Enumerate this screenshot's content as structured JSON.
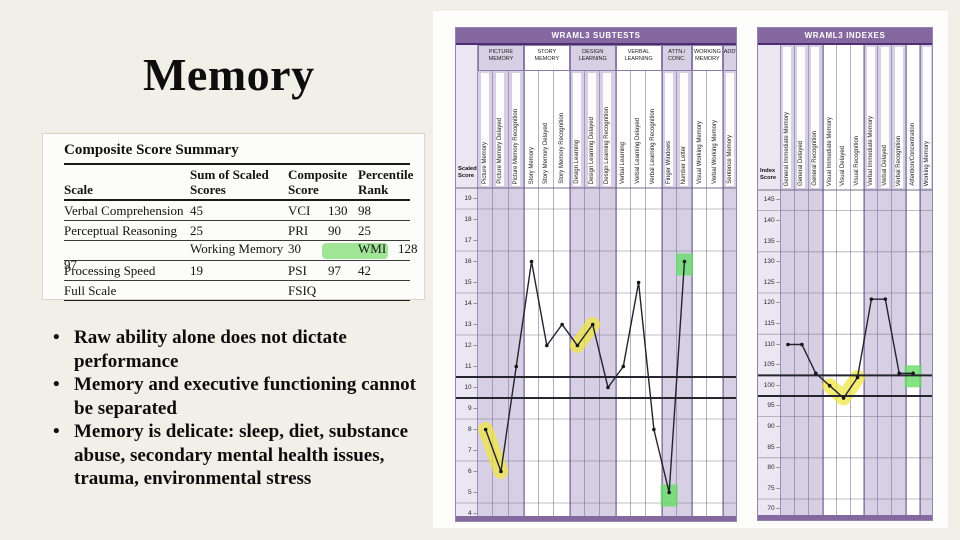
{
  "slide": {
    "title": "Memory",
    "bullets": [
      "Raw ability alone does not dictate performance",
      "Memory and executive functioning cannot be separated",
      "Memory is delicate: sleep, diet, substance abuse, secondary mental health issues, trauma, environmental stress"
    ]
  },
  "score_table": {
    "heading": "Composite Score Summary",
    "columns": [
      "Scale",
      "Sum of Scaled Scores",
      "Composite Score",
      "Percentile Rank"
    ],
    "rows": [
      {
        "scale": "Verbal Comprehension",
        "sum": "45",
        "abbr": "VCI",
        "score": "130",
        "percentile": "98",
        "highlight": false
      },
      {
        "scale": "Perceptual Reasoning",
        "sum": "25",
        "abbr": "PRI",
        "score": "90",
        "percentile": "25",
        "highlight": false
      },
      {
        "scale": "Working Memory",
        "sum": "30",
        "abbr": "WMI",
        "score": "128",
        "percentile": "97",
        "highlight": true
      },
      {
        "scale": "Processing Speed",
        "sum": "19",
        "abbr": "PSI",
        "score": "97",
        "percentile": "42",
        "highlight": false
      },
      {
        "scale": "Full Scale",
        "sum": "",
        "abbr": "FSIQ",
        "score": "",
        "percentile": "",
        "highlight": false
      }
    ]
  },
  "colors": {
    "header_purple": "#85689f",
    "header_dark": "#4f2d73",
    "lavender": "#d7d0e5",
    "axis_column": "#eae6f2",
    "white_column": "#ffffff",
    "data_line": "#23232c",
    "band_line": "#26262e",
    "highlight_yellow": "#f0e63e",
    "highlight_green": "#67dc67",
    "table_highlight_green": "#96e189"
  },
  "chart_data": [
    {
      "type": "line",
      "title": "WRAML3 SUBTESTS",
      "axis_label": "Scaled Score",
      "yaxis": {
        "max": 19,
        "min": 4,
        "step": 1
      },
      "band": [
        10.5,
        9.5
      ],
      "legend": "none",
      "groups": [
        {
          "label": "PICTURE MEMORY",
          "span": 3
        },
        {
          "label": "STORY MEMORY",
          "span": 3
        },
        {
          "label": "DESIGN LEARNING",
          "span": 3
        },
        {
          "label": "VERBAL LEARNING",
          "span": 3
        },
        {
          "label": "ATTN./ CONC.",
          "span": 2
        },
        {
          "label": "WORKING MEMORY",
          "span": 2
        },
        {
          "label": "ADD'L.",
          "span": 1
        }
      ],
      "categories": [
        "Picture Memory",
        "Picture Memory Delayed",
        "Picture Memory Recognition",
        "Story Memory",
        "Story Memory Delayed",
        "Story Memory Recognition",
        "Design Learning",
        "Design Learning Delayed",
        "Design Learning Recognition",
        "Verbal Learning",
        "Verbal Learning Delayed",
        "Verbal Learning Recognition",
        "Finger Windows",
        "Number Letter",
        "Visual Working Memory",
        "Verbal Working Memory",
        "Sentence Memory"
      ],
      "values": [
        8,
        6,
        11,
        16,
        12,
        13,
        12,
        13,
        10,
        11,
        15,
        8,
        5,
        16,
        null,
        null,
        null
      ],
      "highlights": {
        "yellow_ranges": [
          [
            0,
            1
          ],
          [
            6,
            7
          ]
        ],
        "green_points": [
          12,
          13
        ]
      }
    },
    {
      "type": "line",
      "title": "WRAML3 INDEXES",
      "axis_label": "Index Score",
      "yaxis": {
        "max": 145,
        "min": 70,
        "step": 5
      },
      "band": [
        102.5,
        97.5
      ],
      "legend": "none",
      "groups": [
        {
          "label": "",
          "span": 3
        },
        {
          "label": "",
          "span": 3
        },
        {
          "label": "",
          "span": 3
        },
        {
          "label": "",
          "span": 1
        },
        {
          "label": "",
          "span": 1
        }
      ],
      "categories": [
        "General Immediate Memory",
        "General Delayed",
        "General Recognition",
        "Visual Immediate Memory",
        "Visual Delayed",
        "Visual Recognition",
        "Verbal Immediate Memory",
        "Verbal Delayed",
        "Verbal Recognition",
        "Attention/Concentration",
        "Working Memory"
      ],
      "values": [
        110,
        110,
        103,
        100,
        97,
        102,
        121,
        121,
        103,
        103,
        null
      ],
      "highlights": {
        "yellow_ranges": [
          [
            3,
            5
          ]
        ],
        "green_points": [
          9
        ]
      }
    }
  ]
}
